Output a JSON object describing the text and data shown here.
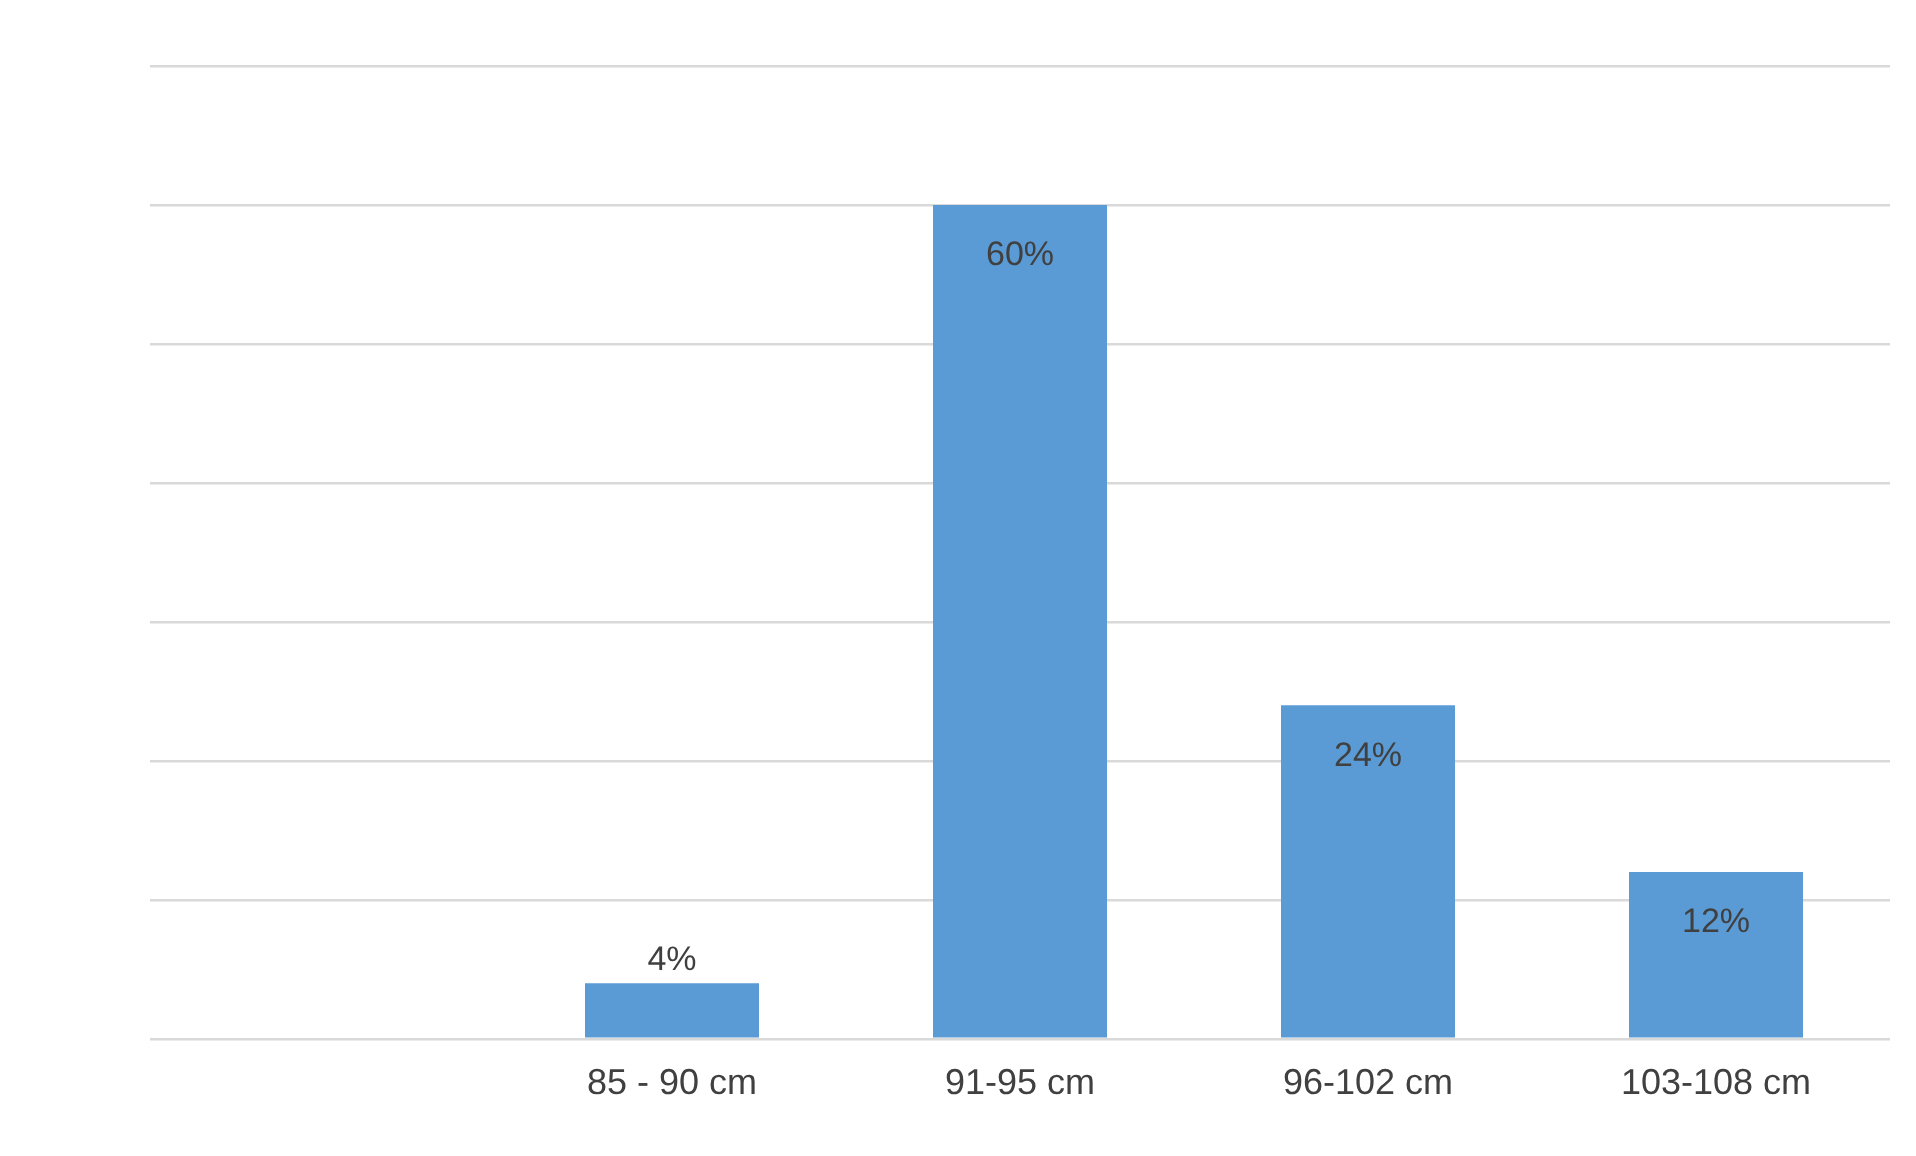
{
  "chart_data": {
    "type": "bar",
    "categories": [
      null,
      "85 - 90 cm",
      "91-95 cm",
      "96-102 cm",
      "103-108 cm"
    ],
    "values": [
      null,
      4,
      60,
      24,
      12
    ],
    "value_labels": [
      null,
      "4%",
      "60%",
      "24%",
      "12%"
    ],
    "color": "#5b9bd5",
    "ylim": [
      0,
      70
    ],
    "yticks": [
      {
        "value": 0,
        "label": null
      },
      {
        "value": 10,
        "label": null
      },
      {
        "value": 20,
        "label": null
      },
      {
        "value": 30,
        "label": null
      },
      {
        "value": 40,
        "label": null
      },
      {
        "value": 50,
        "label": null
      },
      {
        "value": 60,
        "label": null
      },
      {
        "value": 70,
        "label": null
      }
    ],
    "grid": "y",
    "tick_labels": "x",
    "legend": false
  }
}
